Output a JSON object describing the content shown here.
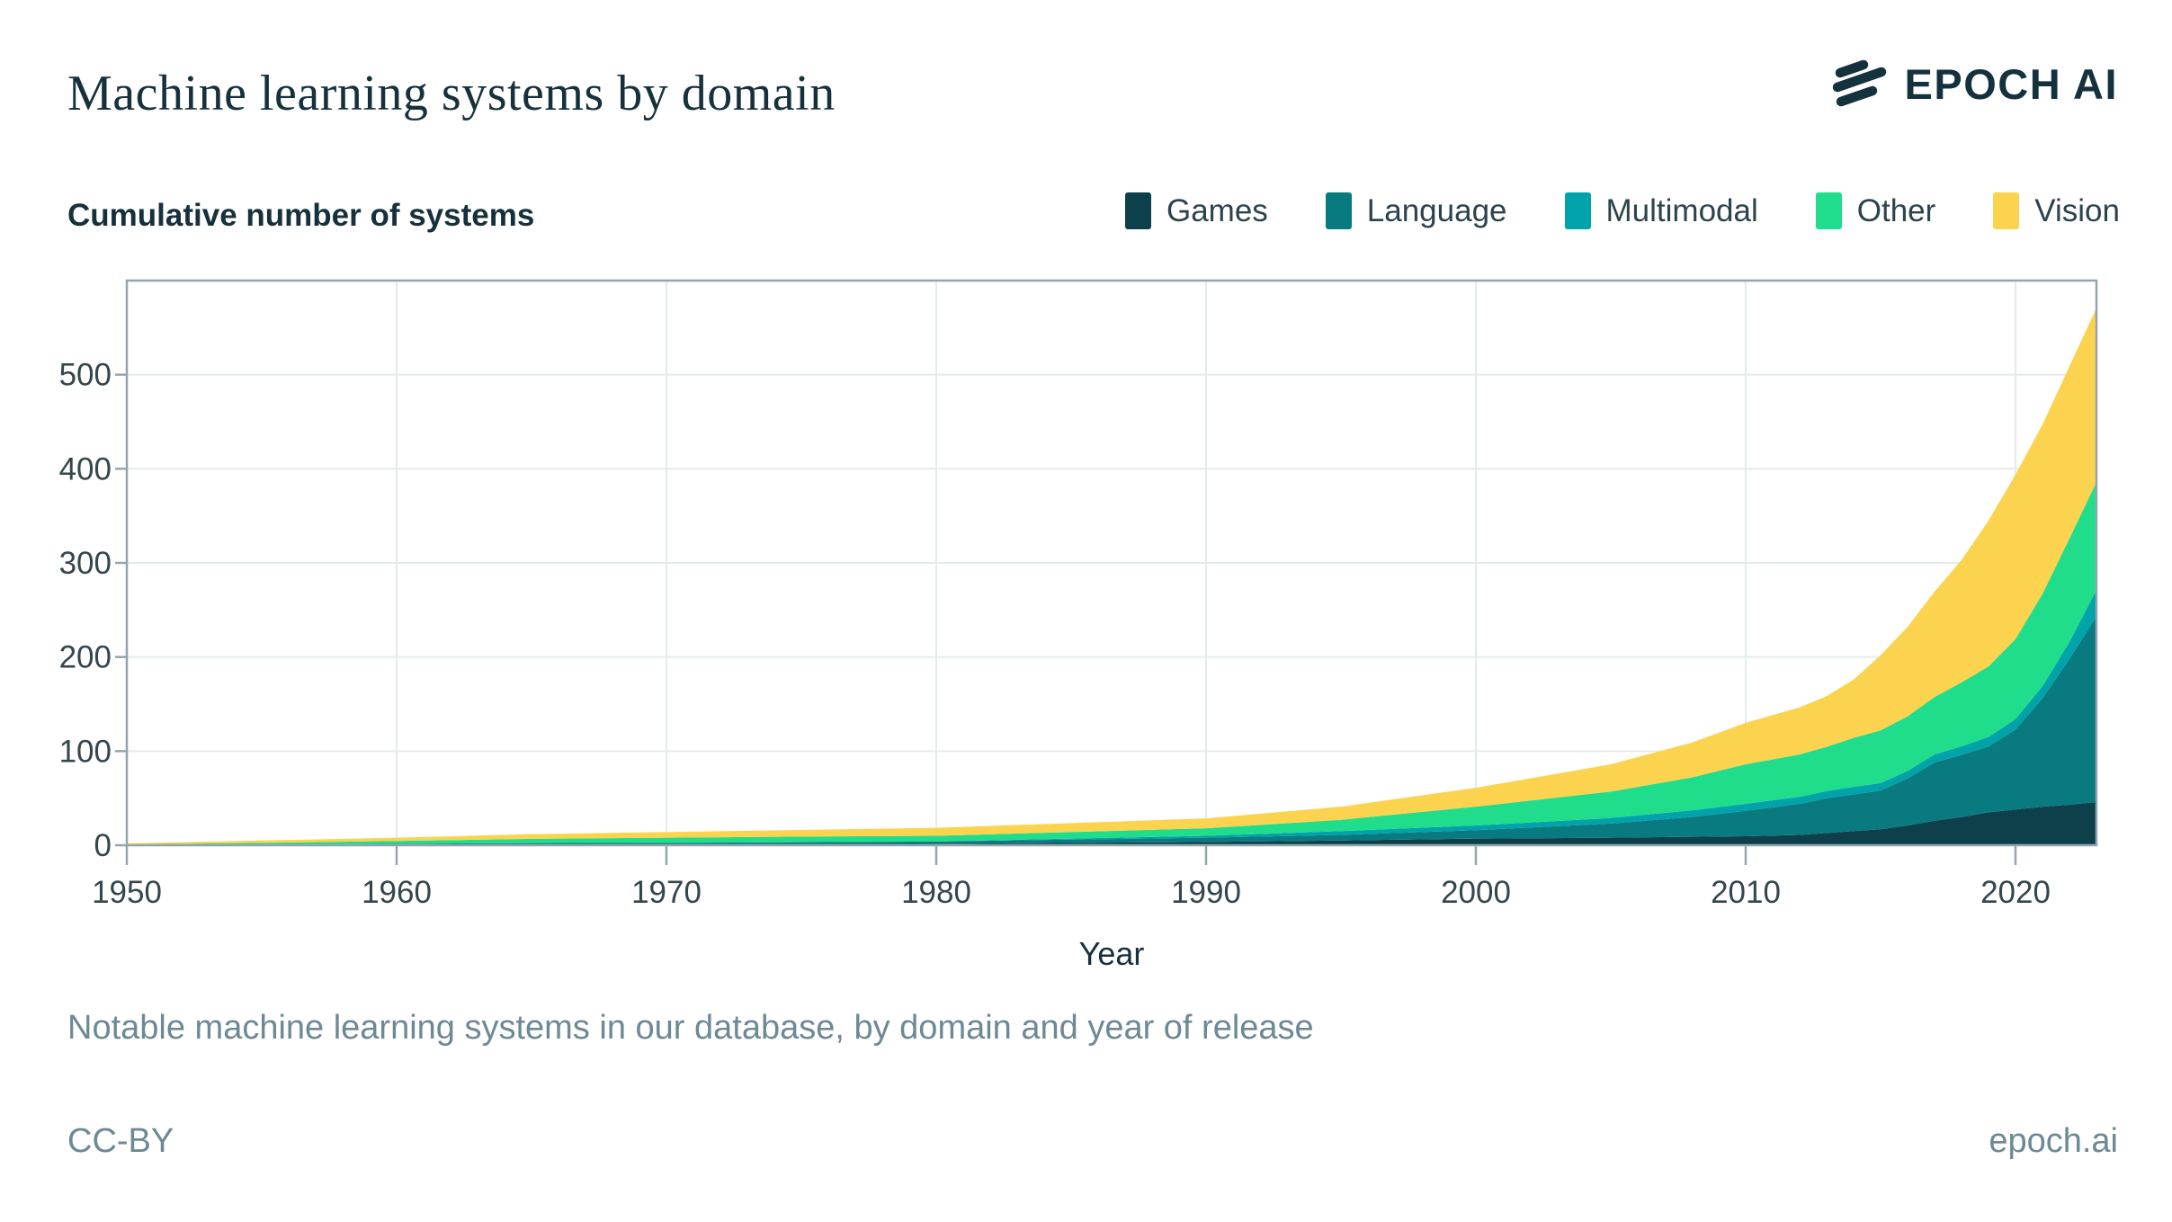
{
  "header": {
    "title": "Machine learning systems by domain",
    "logo_text": "EPOCH AI"
  },
  "caption": "Notable machine learning systems in our database, by domain and year of release",
  "footer": {
    "license": "CC-BY",
    "site": "epoch.ai"
  },
  "colors": {
    "text_dark": "#17313c",
    "text_gray": "#6d8994",
    "axis_frame": "#94a6ad",
    "axis_label": "#34464e",
    "gridline": "#e4ebec"
  },
  "chart_data": {
    "type": "area",
    "stacked": true,
    "title": "Machine learning systems by domain",
    "xlabel": "Year",
    "ylabel": "Cumulative number of systems",
    "x": [
      1950,
      1955,
      1960,
      1965,
      1970,
      1975,
      1980,
      1985,
      1990,
      1995,
      2000,
      2005,
      2008,
      2010,
      2012,
      2013,
      2014,
      2015,
      2016,
      2017,
      2018,
      2019,
      2020,
      2021,
      2022,
      2023
    ],
    "series": [
      {
        "name": "Games",
        "color": "#0d404b",
        "cumulative_values": [
          0,
          0,
          0.5,
          1,
          1,
          1.2,
          1.5,
          2.5,
          3.5,
          5,
          7,
          8,
          9,
          9.5,
          11,
          13,
          15,
          17,
          21,
          26,
          30,
          35,
          38,
          41,
          43,
          46
        ]
      },
      {
        "name": "Language",
        "color": "#087a80",
        "cumulative_values": [
          0,
          0.5,
          1,
          1.3,
          1.5,
          2,
          2.5,
          3.5,
          4.5,
          6,
          9,
          15,
          21,
          27,
          33,
          37,
          39,
          41,
          50,
          62,
          66,
          70,
          85,
          115,
          155,
          197
        ]
      },
      {
        "name": "Multimodal",
        "color": "#00a3a9",
        "cumulative_values": [
          0,
          0,
          0,
          0,
          0,
          0,
          0,
          1,
          2,
          4,
          5,
          6,
          7,
          7.5,
          7.5,
          7.5,
          8,
          8,
          8,
          8.5,
          9,
          10,
          11,
          13,
          18,
          28
        ]
      },
      {
        "name": "Other",
        "color": "#20dd8c",
        "cumulative_values": [
          1,
          2,
          3,
          4.5,
          5.5,
          6,
          6,
          7,
          8,
          12,
          20,
          28,
          35,
          42,
          45,
          47,
          52,
          56,
          58,
          61,
          68,
          75,
          85,
          98,
          110,
          115
        ]
      },
      {
        "name": "Vision",
        "color": "#fcd34f",
        "cumulative_values": [
          1,
          2.5,
          3.5,
          5,
          6,
          7,
          8.5,
          9.5,
          10.5,
          14,
          20,
          29,
          37,
          44,
          50,
          54,
          62,
          80,
          95,
          112,
          130,
          155,
          175,
          180,
          183,
          185
        ]
      }
    ],
    "xlim": [
      1950,
      2023
    ],
    "ylim": [
      0,
      600
    ],
    "xticks": [
      1950,
      1960,
      1970,
      1980,
      1990,
      2000,
      2010,
      2020
    ],
    "yticks": [
      0,
      100,
      200,
      300,
      400,
      500
    ],
    "grid": true,
    "legend_position": "top-right"
  }
}
